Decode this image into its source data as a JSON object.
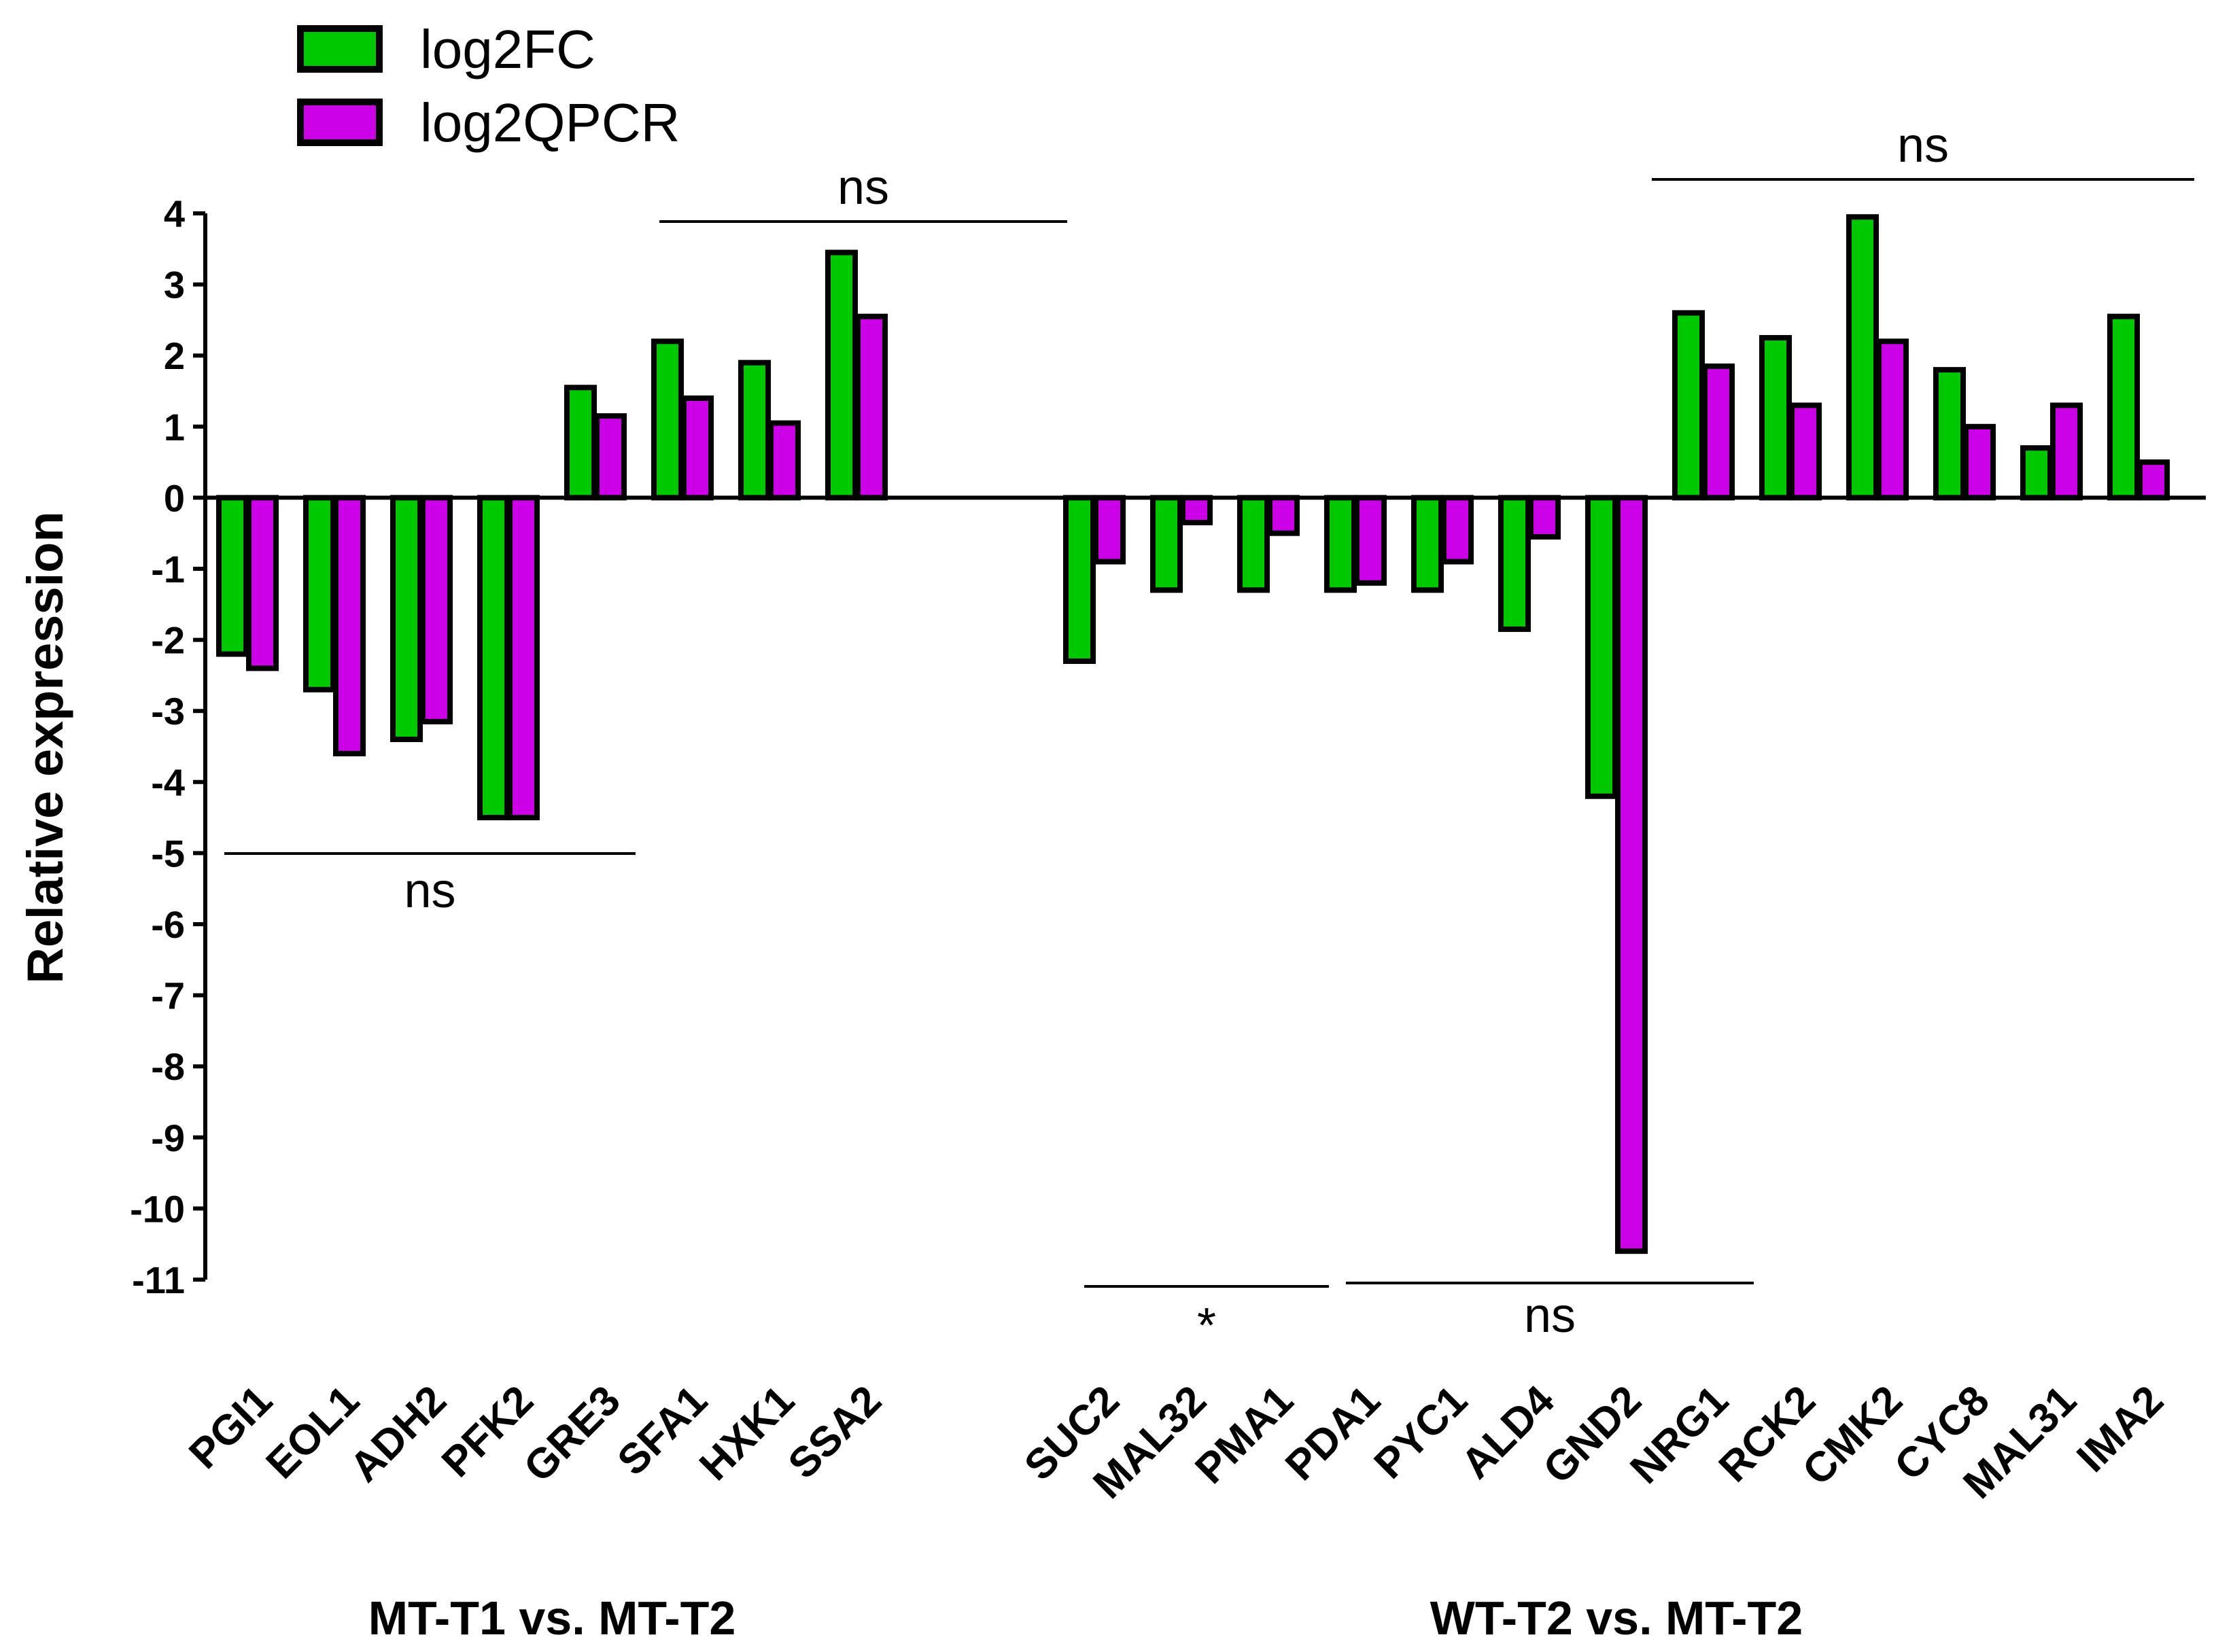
{
  "chart_data": {
    "type": "bar",
    "title": "",
    "xlabel": "",
    "ylabel": "Relative expression",
    "ylim": [
      -11,
      4
    ],
    "yticks": [
      4,
      3,
      2,
      1,
      0,
      -1,
      -2,
      -3,
      -4,
      -5,
      -6,
      -7,
      -8,
      -9,
      -10,
      -11
    ],
    "legend_position": "top-left",
    "series": [
      {
        "name": "log2FC",
        "color": "#00c800"
      },
      {
        "name": "log2QPCR",
        "color": "#cc00e6"
      }
    ],
    "groups": [
      {
        "label": "MT-T1 vs. MT-T2",
        "categories": [
          "PGI1",
          "EOL1",
          "ADH2",
          "PFK2",
          "GRE3",
          "SFA1",
          "HXK1",
          "SSA2"
        ],
        "log2FC": [
          -2.2,
          -2.7,
          -3.4,
          -4.5,
          1.55,
          2.2,
          1.9,
          3.45
        ],
        "log2QPCR": [
          -2.4,
          -3.6,
          -3.15,
          -4.5,
          1.15,
          1.4,
          1.05,
          2.55
        ]
      },
      {
        "label": "WT-T2 vs. MT-T2",
        "categories": [
          "SUC2",
          "MAL32",
          "PMA1",
          "PDA1",
          "PYC1",
          "ALD4",
          "GND2",
          "NRG1",
          "RCK2",
          "CMK2",
          "CYC8",
          "MAL31",
          "IMA2"
        ],
        "log2FC": [
          -2.3,
          -1.3,
          -1.3,
          -1.3,
          -1.3,
          -1.85,
          -4.2,
          2.6,
          2.25,
          3.95,
          1.8,
          0.7,
          2.55
        ],
        "log2QPCR": [
          -0.9,
          -0.35,
          -0.5,
          -1.2,
          -0.9,
          -0.55,
          -10.6,
          1.85,
          1.3,
          2.2,
          1.0,
          1.3,
          0.5
        ]
      }
    ],
    "annotations": [
      {
        "text": "ns",
        "group": 0,
        "from": 0,
        "to": 4,
        "side": "below"
      },
      {
        "text": "ns",
        "group": 0,
        "from": 5,
        "to": 7,
        "side": "above"
      },
      {
        "text": "*",
        "group": 1,
        "from": 0,
        "to": 2,
        "side": "below"
      },
      {
        "text": "ns",
        "group": 1,
        "from": 3,
        "to": 7,
        "side": "below"
      },
      {
        "text": "ns",
        "group": 1,
        "from": 7,
        "to": 12,
        "side": "above"
      }
    ]
  }
}
